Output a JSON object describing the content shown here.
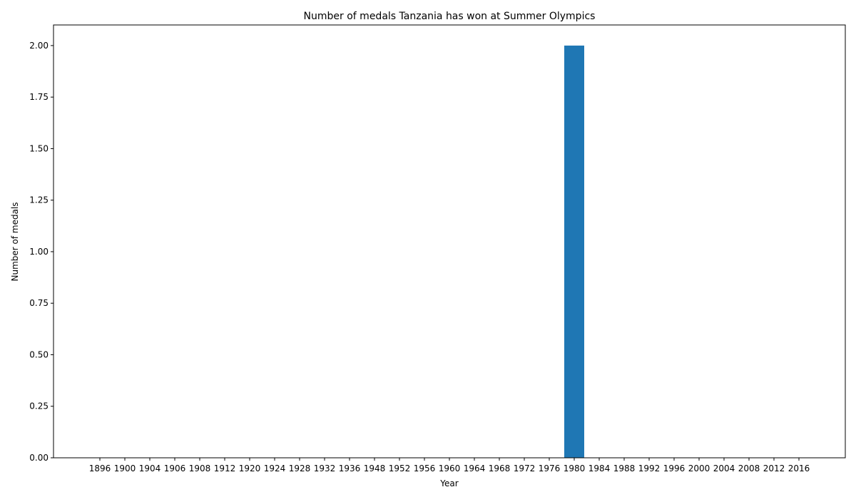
{
  "chart_data": {
    "type": "bar",
    "title": "Number of medals Tanzania has won at Summer Olympics",
    "xlabel": "Year",
    "ylabel": "Number of medals",
    "categories": [
      "1896",
      "1900",
      "1904",
      "1906",
      "1908",
      "1912",
      "1920",
      "1924",
      "1928",
      "1932",
      "1936",
      "1948",
      "1952",
      "1956",
      "1960",
      "1964",
      "1968",
      "1972",
      "1976",
      "1980",
      "1984",
      "1988",
      "1992",
      "1996",
      "2000",
      "2004",
      "2008",
      "2012",
      "2016"
    ],
    "values": [
      0,
      0,
      0,
      0,
      0,
      0,
      0,
      0,
      0,
      0,
      0,
      0,
      0,
      0,
      0,
      0,
      0,
      0,
      0,
      2,
      0,
      0,
      0,
      0,
      0,
      0,
      0,
      0,
      0
    ],
    "ylim": [
      0,
      2.1
    ],
    "yticks": [
      "0.00",
      "0.25",
      "0.50",
      "0.75",
      "1.00",
      "1.25",
      "1.50",
      "1.75",
      "2.00"
    ],
    "grid": false,
    "bar_color": "#1f77b4"
  }
}
